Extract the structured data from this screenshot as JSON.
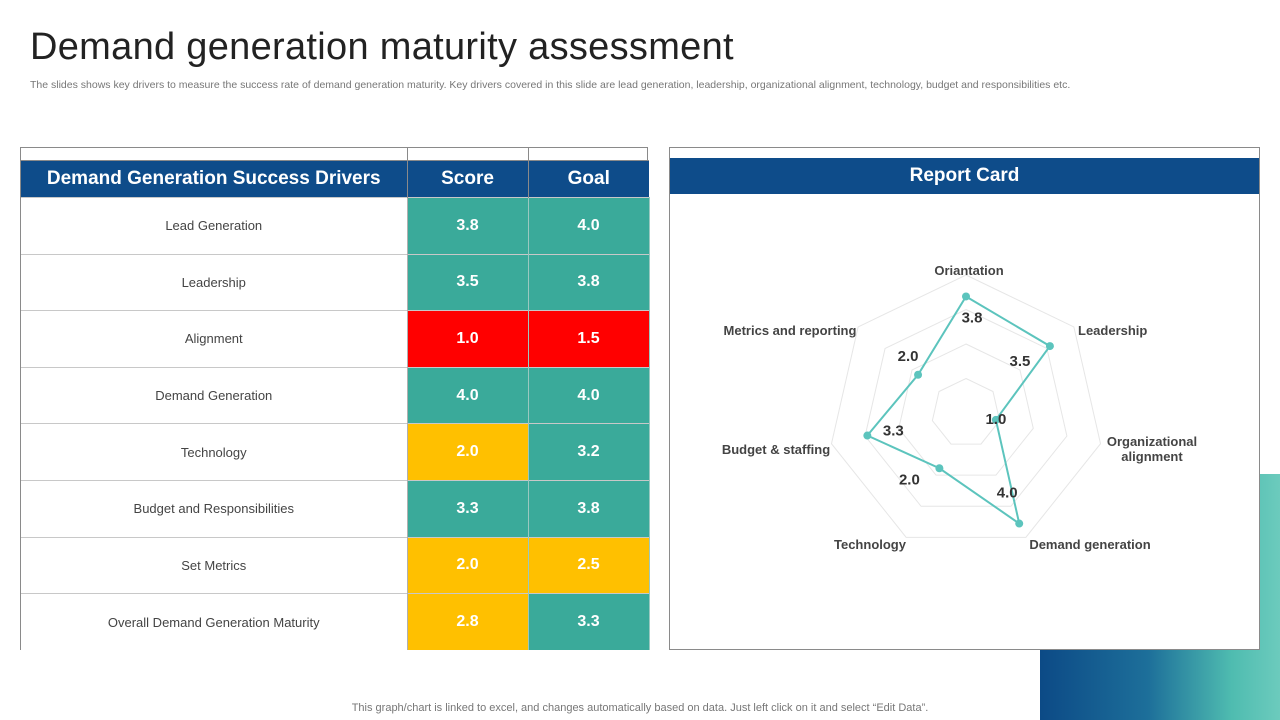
{
  "header": {
    "title": "Demand generation maturity assessment",
    "subtitle": "The slides shows key drivers to measure the success rate of demand generation maturity. Key drivers covered in this slide are lead generation, leadership, organizational alignment, technology, budget and responsibilities etc."
  },
  "table": {
    "columns": [
      "Demand Generation Success Drivers",
      "Score",
      "Goal"
    ],
    "rows": [
      {
        "driver": "Lead Generation",
        "score": "3.8",
        "goal": "4.0",
        "score_status": "teal",
        "goal_status": "teal"
      },
      {
        "driver": "Leadership",
        "score": "3.5",
        "goal": "3.8",
        "score_status": "teal",
        "goal_status": "teal"
      },
      {
        "driver": "Alignment",
        "score": "1.0",
        "goal": "1.5",
        "score_status": "red",
        "goal_status": "red"
      },
      {
        "driver": "Demand Generation",
        "score": "4.0",
        "goal": "4.0",
        "score_status": "teal",
        "goal_status": "teal"
      },
      {
        "driver": "Technology",
        "score": "2.0",
        "goal": "3.2",
        "score_status": "yellow",
        "goal_status": "teal"
      },
      {
        "driver": "Budget and Responsibilities",
        "score": "3.3",
        "goal": "3.8",
        "score_status": "teal",
        "goal_status": "teal"
      },
      {
        "driver": "Set Metrics",
        "score": "2.0",
        "goal": "2.5",
        "score_status": "yellow",
        "goal_status": "yellow"
      },
      {
        "driver": "Overall  Demand  Generation  Maturity",
        "score": "2.8",
        "goal": "3.3",
        "score_status": "yellow",
        "goal_status": "teal"
      }
    ]
  },
  "report_card": {
    "title": "Report Card"
  },
  "chart_data": {
    "type": "radar",
    "title": "Report Card",
    "axes": [
      "Oriantation",
      "Leadership",
      "Organizational alignment",
      "Demand generation",
      "Technology",
      "Budget & staffing",
      "Metrics and reporting"
    ],
    "values": [
      3.8,
      3.5,
      1.0,
      4.0,
      2.0,
      3.3,
      2.0
    ],
    "value_labels": [
      "3.8",
      "3.5",
      "1.0",
      "4.0",
      "2.0",
      "3.3",
      "2.0"
    ],
    "rlim": [
      0,
      4.5
    ],
    "grid_rings": 4,
    "series_color": "#5cc4bd"
  },
  "colors": {
    "brand_blue": "#0e4c8a",
    "teal": "#3aaa9a",
    "red": "#ff0000",
    "yellow": "#ffc000"
  },
  "footer": {
    "note": "This graph/chart is linked to excel,  and changes automatically based on data. Just left click on it and select “Edit Data”."
  }
}
